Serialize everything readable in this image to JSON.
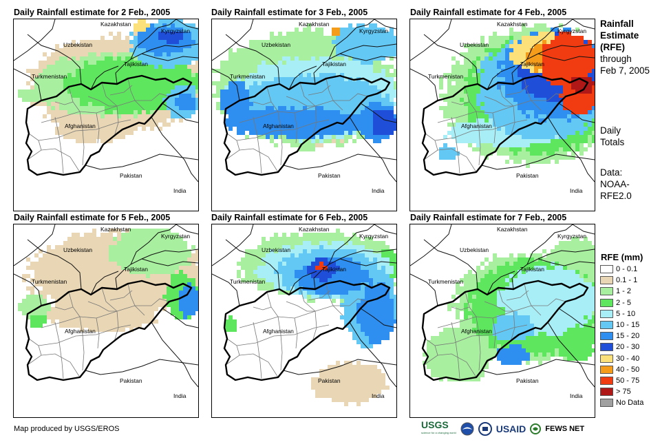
{
  "panels": [
    {
      "title": "Daily Rainfall estimate for 2 Feb., 2005"
    },
    {
      "title": "Daily Rainfall estimate for 3 Feb., 2005"
    },
    {
      "title": "Daily Rainfall estimate for 4 Feb., 2005"
    },
    {
      "title": "Daily Rainfall estimate for 5 Feb., 2005"
    },
    {
      "title": "Daily Rainfall estimate for 6 Feb., 2005"
    },
    {
      "title": "Daily Rainfall estimate for 7 Feb., 2005"
    }
  ],
  "map_labels": {
    "kazakhstan": "Kazakhstan",
    "kyrgyzstan": "Kyrgyzstan",
    "uzbekistan": "Uzbekistan",
    "tajikistan": "Tajikistan",
    "turkmenistan": "Turkmenistan",
    "afghanistan": "Afghanistan",
    "pakistan": "Pakistan",
    "india": "India"
  },
  "side": {
    "title_bold": [
      "Rainfall",
      "Estimate",
      "(RFE)"
    ],
    "title_normal": [
      "through",
      "Feb 7, 2005"
    ],
    "daily": [
      "Daily",
      "Totals"
    ],
    "source": [
      "Data:",
      "NOAA-",
      "RFE2.0"
    ]
  },
  "legend": {
    "title": "RFE (mm)",
    "items": [
      {
        "label": "0 - 0.1",
        "color": "#ffffff"
      },
      {
        "label": "0.1 - 1",
        "color": "#e8d6b4"
      },
      {
        "label": "1 - 2",
        "color": "#a8f0a0"
      },
      {
        "label": "2 - 5",
        "color": "#5ee65e"
      },
      {
        "label": "5 - 10",
        "color": "#a8eef6"
      },
      {
        "label": "10 - 15",
        "color": "#64c8f4"
      },
      {
        "label": "15 - 20",
        "color": "#2f8ff0"
      },
      {
        "label": "20 - 30",
        "color": "#1f4fd8"
      },
      {
        "label": "30 - 40",
        "color": "#fce07a"
      },
      {
        "label": "40 - 50",
        "color": "#f59c1a"
      },
      {
        "label": "50 - 75",
        "color": "#f03c10"
      },
      {
        "label": "> 75",
        "color": "#b01818"
      },
      {
        "label": "No Data",
        "color": "#a0a0a0"
      }
    ]
  },
  "credit": "Map produced by USGS/EROS",
  "logos": {
    "usgs": "USGS",
    "usaid": "USAID",
    "fewsnet": "FEWS NET",
    "usgs_tagline": "science for a changing world"
  }
}
